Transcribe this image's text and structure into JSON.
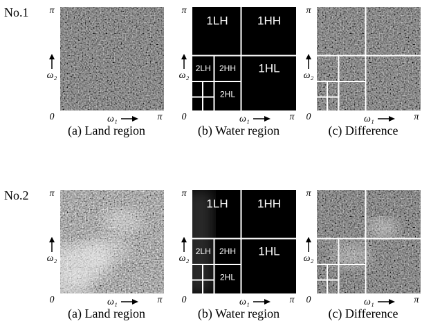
{
  "rows": [
    {
      "label": "No.1",
      "panels": [
        {
          "caption": "(a) Land region"
        },
        {
          "caption": "(b) Water region",
          "subbands": [
            "1LH",
            "1HH",
            "1HL",
            "2LH",
            "2HH",
            "2HL"
          ]
        },
        {
          "caption": "(c) Difference"
        }
      ]
    },
    {
      "label": "No.2",
      "panels": [
        {
          "caption": "(a) Land region"
        },
        {
          "caption": "(b) Water region",
          "subbands": [
            "1LH",
            "1HH",
            "1HL",
            "2LH",
            "2HH",
            "2HL"
          ]
        },
        {
          "caption": "(c) Difference"
        }
      ]
    }
  ],
  "axis": {
    "y_max": "π",
    "y_label": "ω₂",
    "origin": "0",
    "x_label": "ω₁",
    "x_max": "π"
  }
}
